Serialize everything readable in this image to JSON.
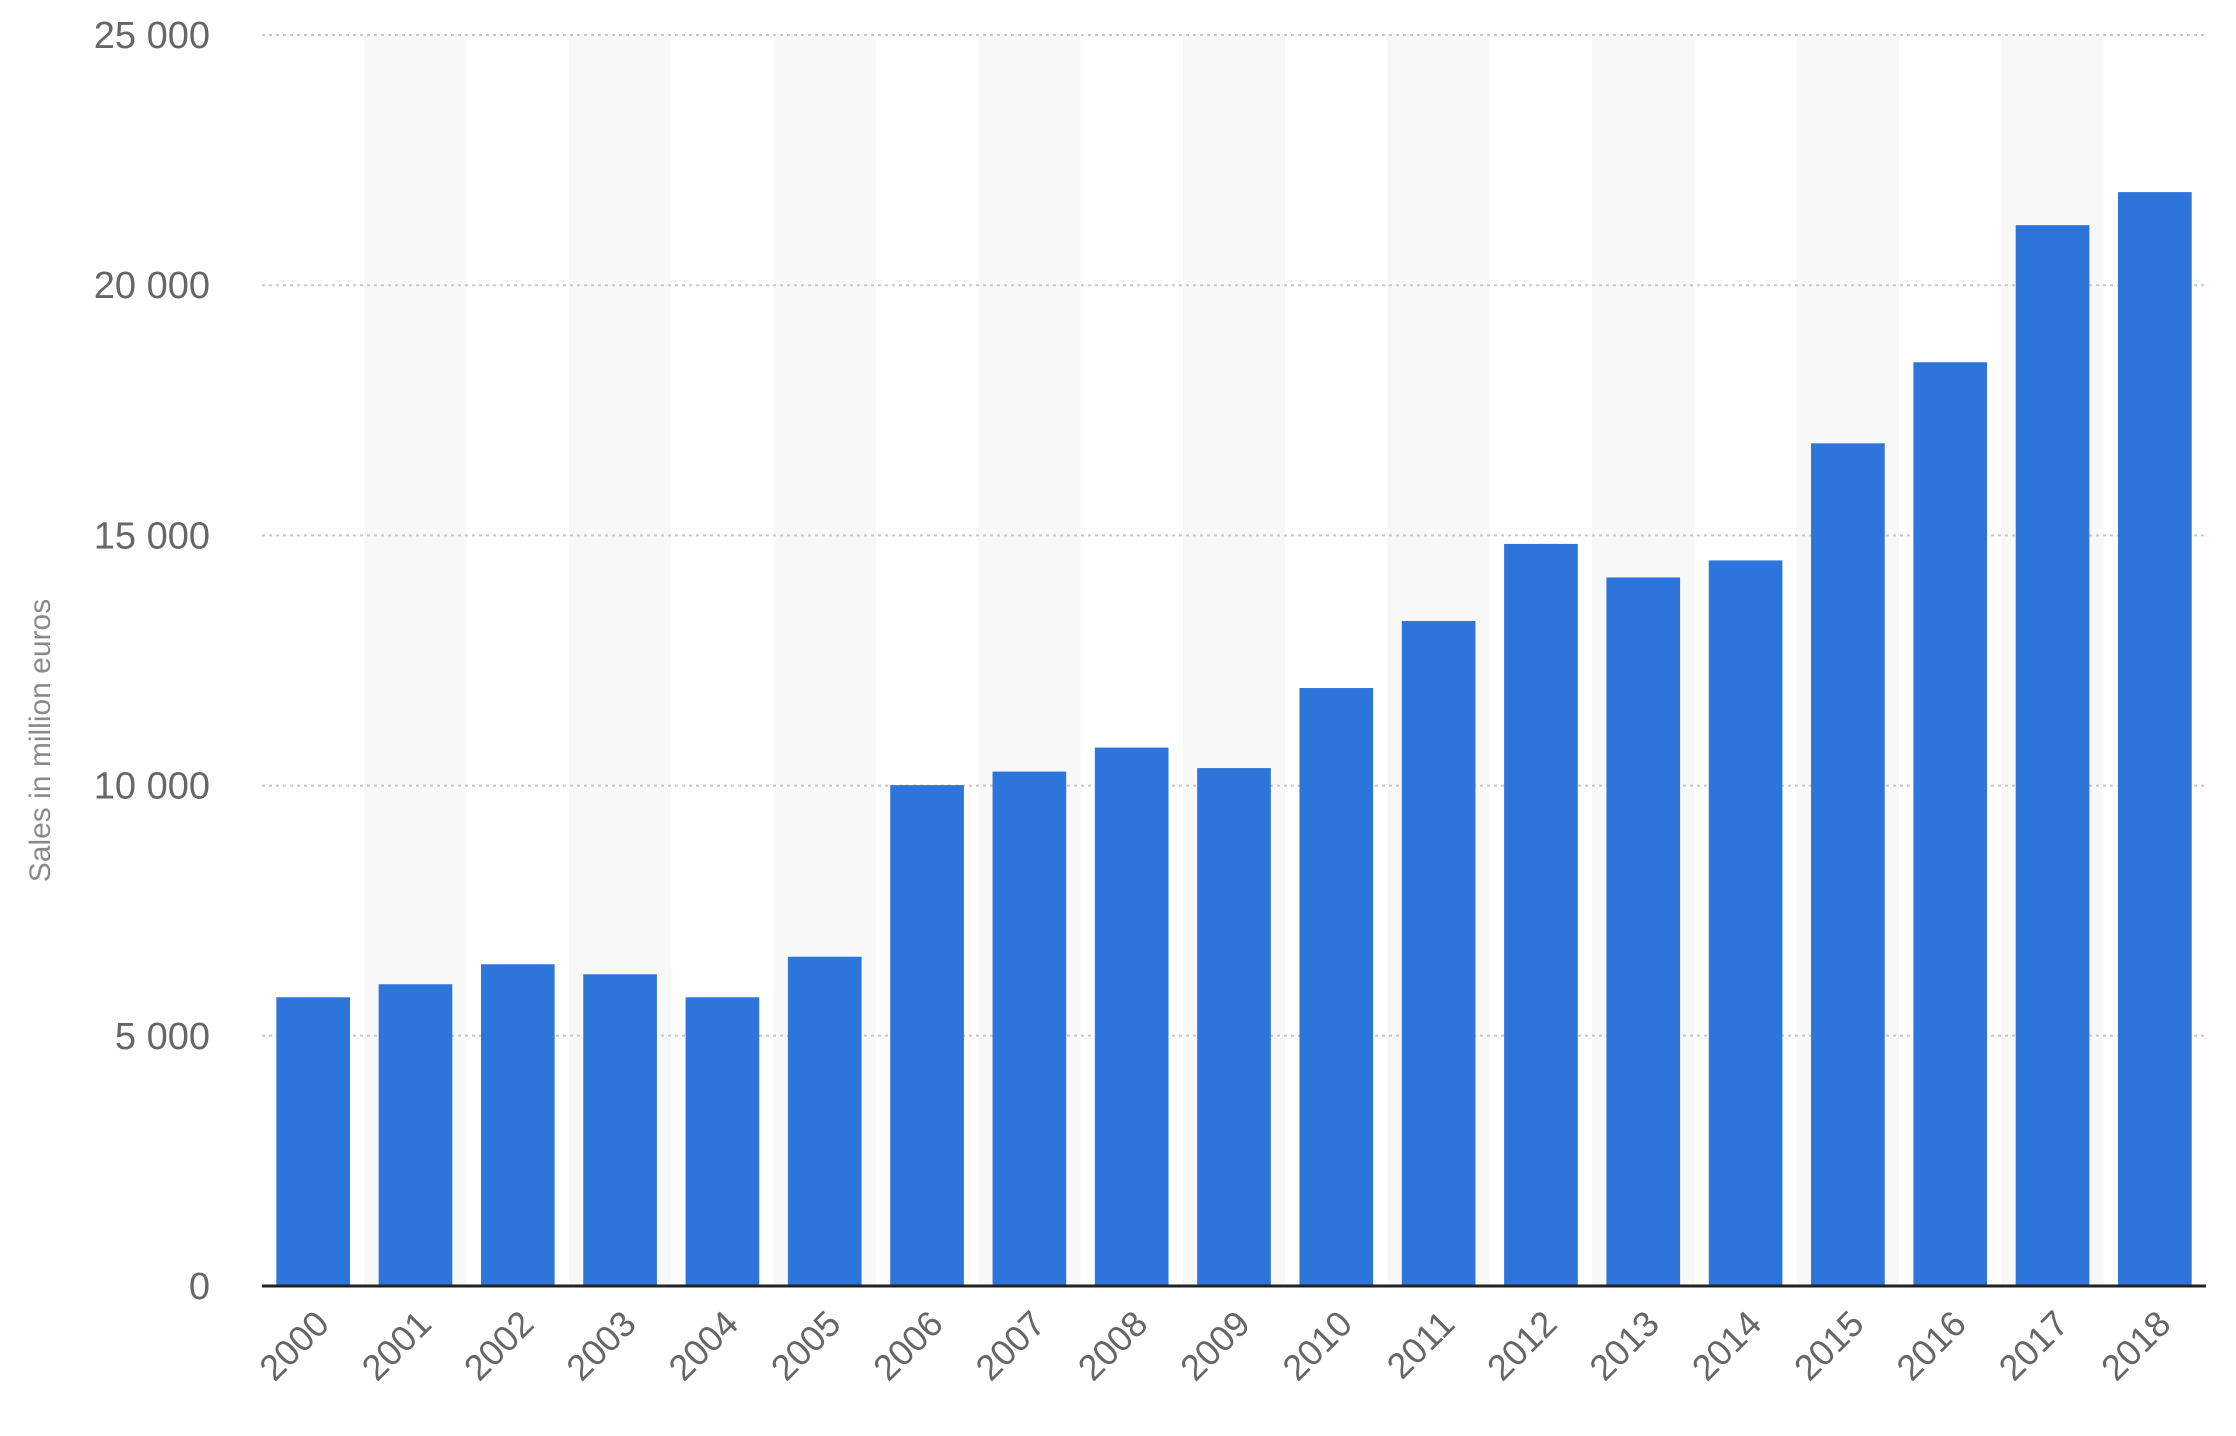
{
  "chart_data": {
    "type": "bar",
    "categories": [
      "2000",
      "2001",
      "2002",
      "2003",
      "2004",
      "2005",
      "2006",
      "2007",
      "2008",
      "2009",
      "2010",
      "2011",
      "2012",
      "2013",
      "2014",
      "2015",
      "2016",
      "2017",
      "2018"
    ],
    "values": [
      5770,
      6030,
      6430,
      6230,
      5770,
      6580,
      10010,
      10280,
      10760,
      10350,
      11950,
      13290,
      14830,
      14160,
      14500,
      16840,
      18460,
      21200,
      21860
    ],
    "ylabel": "Sales in million euros",
    "ylim": [
      0,
      25000
    ],
    "yticks": [
      0,
      5000,
      10000,
      15000,
      20000,
      25000
    ],
    "ytick_labels": [
      "0",
      "5 000",
      "10 000",
      "15 000",
      "20 000",
      "25 000"
    ],
    "grid": true,
    "bar_color": "#2e75db",
    "band_color": "#f8f8f8"
  }
}
